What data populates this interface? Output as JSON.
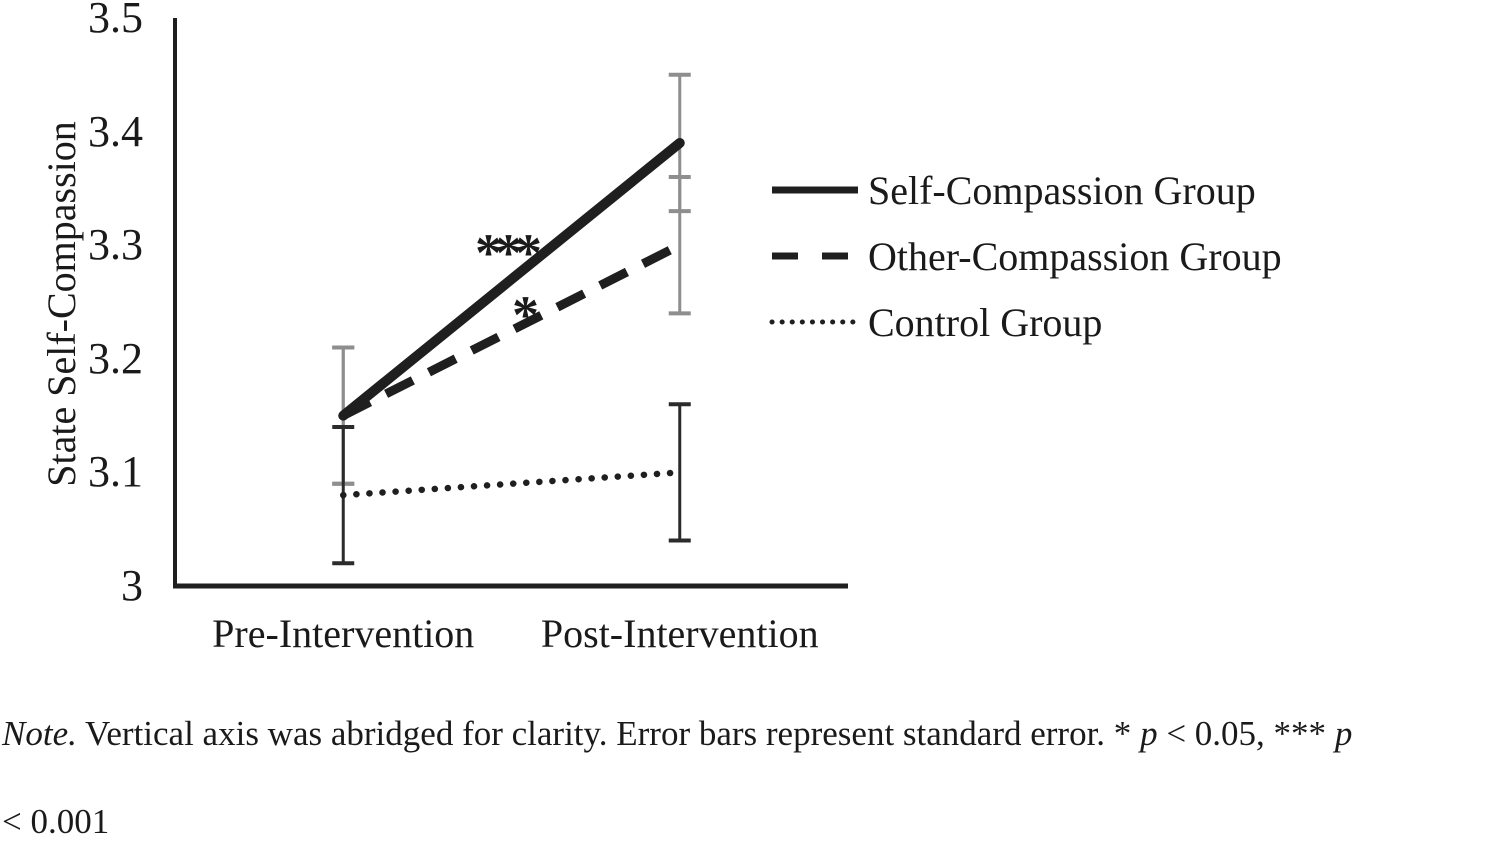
{
  "figure": {
    "background": "#ffffff",
    "text_color": "#1a1a1a",
    "axis_color": "#1f1f1f",
    "series_line_color": "#1f1f1f",
    "compassion_errorbar_color": "#8e8e8e",
    "control_errorbar_color": "#2b2b2b"
  },
  "chart_data": {
    "type": "line",
    "title": "",
    "xlabel": "",
    "ylabel": "State Self-Compassion",
    "categories": [
      "Pre-Intervention",
      "Post-Intervention"
    ],
    "ylim": [
      3.0,
      3.5
    ],
    "yticks": [
      3,
      3.1,
      3.2,
      3.3,
      3.4,
      3.5
    ],
    "ytick_labels": [
      "3",
      "3.1",
      "3.2",
      "3.3",
      "3.4",
      "3.5"
    ],
    "grid": false,
    "legend_position": "right",
    "series": [
      {
        "name": "Self-Compassion Group",
        "style": "solid",
        "values": [
          3.15,
          3.39
        ],
        "std_error": 0.06,
        "error_color": "#8e8e8e"
      },
      {
        "name": "Other-Compassion Group",
        "style": "dashed",
        "values": [
          3.15,
          3.3
        ],
        "std_error": 0.06,
        "error_color": "#8e8e8e"
      },
      {
        "name": "Control Group",
        "style": "dotted",
        "values": [
          3.08,
          3.1
        ],
        "std_error": 0.06,
        "error_color": "#2b2b2b"
      }
    ],
    "annotations": [
      {
        "text": "***",
        "x": 505,
        "y": 226
      },
      {
        "text": "*",
        "x": 522,
        "y": 288
      }
    ]
  },
  "note": {
    "line1_segments": [
      {
        "text": "Note.",
        "italic": true
      },
      {
        "text": " Vertical axis was abridged for clarity. Error bars represent standard error. * ",
        "italic": false
      },
      {
        "text": "p",
        "italic": true
      },
      {
        "text": " < 0.05, *** ",
        "italic": false
      },
      {
        "text": "p",
        "italic": true
      }
    ],
    "line2": "< 0.001"
  }
}
